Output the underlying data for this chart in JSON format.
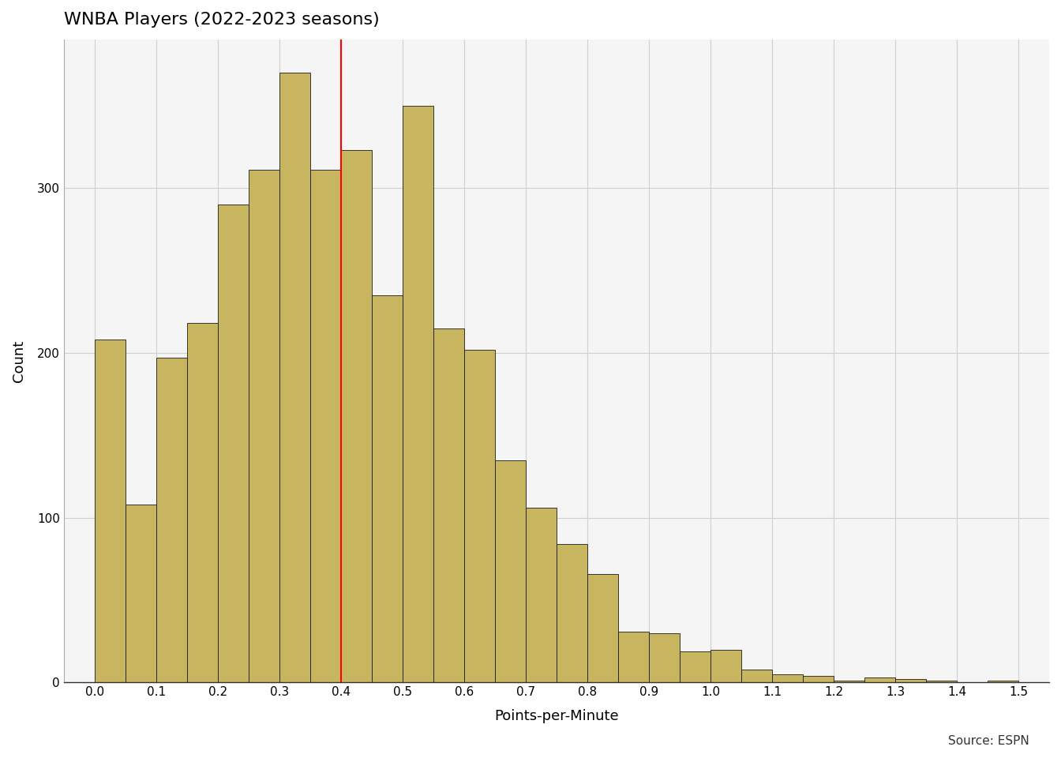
{
  "title": "WNBA Players (2022-2023 seasons)",
  "xlabel": "Points-per-Minute",
  "ylabel": "Count",
  "bar_color": "#C8B560",
  "bar_edge_color": "#1a1a1a",
  "vline_x": 0.4,
  "vline_color": "red",
  "background_color": "#ffffff",
  "plot_bg_color": "#f5f5f5",
  "grid_color": "#d0d0d0",
  "xlim": [
    -0.05,
    1.55
  ],
  "ylim": [
    0,
    390
  ],
  "xticks": [
    0.0,
    0.1,
    0.2,
    0.3,
    0.4,
    0.5,
    0.6,
    0.7,
    0.8,
    0.9,
    1.0,
    1.1,
    1.2,
    1.3,
    1.4,
    1.5
  ],
  "yticks": [
    0,
    100,
    200,
    300
  ],
  "source_text": "Source: ESPN",
  "bin_width": 0.05,
  "bin_edges": [
    0.0,
    0.05,
    0.1,
    0.15,
    0.2,
    0.25,
    0.3,
    0.35,
    0.4,
    0.45,
    0.5,
    0.55,
    0.6,
    0.65,
    0.7,
    0.75,
    0.8,
    0.85,
    0.9,
    0.95,
    1.0,
    1.05,
    1.1,
    1.15,
    1.2,
    1.25,
    1.3,
    1.35,
    1.4,
    1.45
  ],
  "bar_heights": [
    208,
    108,
    197,
    218,
    290,
    311,
    370,
    311,
    323,
    235,
    350,
    215,
    202,
    135,
    106,
    84,
    66,
    31,
    30,
    19,
    20,
    8,
    5,
    4,
    1,
    3,
    2,
    1,
    0,
    1
  ]
}
